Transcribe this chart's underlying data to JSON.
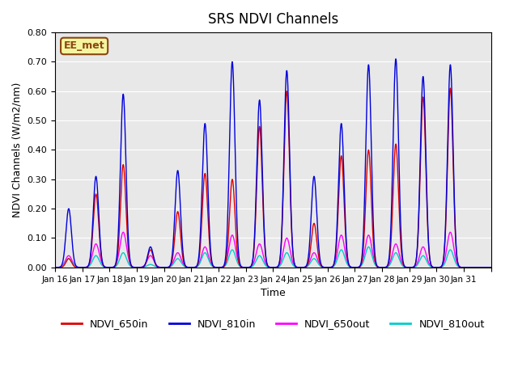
{
  "title": "SRS NDVI Channels",
  "xlabel": "Time",
  "ylabel": "NDVI Channels (W/m2/nm)",
  "ylim": [
    0.0,
    0.8
  ],
  "yticks": [
    0.0,
    0.1,
    0.2,
    0.3,
    0.4,
    0.5,
    0.6,
    0.7,
    0.8
  ],
  "bg_color": "#e8e8e8",
  "annotation_text": "EE_met",
  "annotation_bg": "#f5f5a0",
  "annotation_border": "#8B4513",
  "colors": {
    "NDVI_650in": "#dd0000",
    "NDVI_810in": "#0000dd",
    "NDVI_650out": "#ff00ff",
    "NDVI_810out": "#00cccc"
  },
  "xtick_positions": [
    0,
    1,
    2,
    3,
    4,
    5,
    6,
    7,
    8,
    9,
    10,
    11,
    12,
    13,
    14,
    15,
    16
  ],
  "xtick_labels": [
    "Jan 16",
    "Jan 17",
    "Jan 18",
    "Jan 19",
    "Jan 20",
    "Jan 21",
    "Jan 22",
    "Jan 23",
    "Jan 24",
    "Jan 25",
    "Jan 26",
    "Jan 27",
    "Jan 28",
    "Jan 29",
    "Jan 30",
    "Jan 31",
    ""
  ],
  "peaks_810in": [
    0.2,
    0.31,
    0.59,
    0.07,
    0.33,
    0.49,
    0.7,
    0.57,
    0.67,
    0.31,
    0.49,
    0.69,
    0.71,
    0.65,
    0.69,
    0.0
  ],
  "peaks_650in": [
    0.03,
    0.25,
    0.35,
    0.06,
    0.19,
    0.32,
    0.3,
    0.48,
    0.6,
    0.15,
    0.38,
    0.4,
    0.42,
    0.58,
    0.61,
    0.0
  ],
  "peaks_650out": [
    0.04,
    0.08,
    0.12,
    0.04,
    0.05,
    0.07,
    0.11,
    0.08,
    0.1,
    0.05,
    0.11,
    0.11,
    0.08,
    0.07,
    0.12,
    0.0
  ],
  "peaks_810out": [
    0.03,
    0.04,
    0.05,
    0.01,
    0.03,
    0.05,
    0.06,
    0.04,
    0.05,
    0.03,
    0.06,
    0.07,
    0.05,
    0.04,
    0.06,
    0.0
  ]
}
